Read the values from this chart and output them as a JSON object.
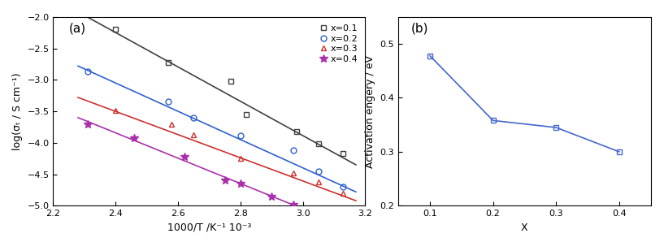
{
  "panel_a": {
    "title": "(a)",
    "xlabel": "1000/T /K⁻¹ 10⁻³",
    "ylabel": "log(σₜ / S cm⁻¹)",
    "xlim": [
      2.2,
      3.2
    ],
    "ylim": [
      -5.0,
      -2.0
    ],
    "xticks": [
      2.2,
      2.4,
      2.6,
      2.8,
      3.0,
      3.2
    ],
    "yticks": [
      -5.0,
      -4.5,
      -4.0,
      -3.5,
      -3.0,
      -2.5,
      -2.0
    ],
    "series": [
      {
        "label": "x=0.1",
        "color": "#404040",
        "marker": "s",
        "markersize": 5,
        "markerfacecolor": "none",
        "markeredgecolor": "#404040",
        "x_data": [
          2.4,
          2.57,
          2.77,
          2.82,
          2.98,
          3.05,
          3.13
        ],
        "y_data": [
          -2.2,
          -2.72,
          -3.02,
          -3.55,
          -3.82,
          -4.02,
          -4.17
        ],
        "fit_x": [
          2.28,
          3.17
        ],
        "fit_y": [
          -1.92,
          -4.35
        ]
      },
      {
        "label": "x=0.2",
        "color": "#3060cc",
        "marker": "o",
        "markersize": 5,
        "markerfacecolor": "none",
        "markeredgecolor": "#3060cc",
        "x_data": [
          2.31,
          2.57,
          2.65,
          2.8,
          2.97,
          3.05,
          3.13
        ],
        "y_data": [
          -2.87,
          -3.35,
          -3.6,
          -3.88,
          -4.12,
          -4.45,
          -4.7
        ],
        "fit_x": [
          2.28,
          3.17
        ],
        "fit_y": [
          -2.78,
          -4.78
        ]
      },
      {
        "label": "x=0.3",
        "color": "#cc3030",
        "marker": "^",
        "markersize": 5,
        "markerfacecolor": "none",
        "markeredgecolor": "#cc3030",
        "x_data": [
          2.4,
          2.58,
          2.65,
          2.8,
          2.97,
          3.05,
          3.13
        ],
        "y_data": [
          -3.48,
          -3.7,
          -3.87,
          -4.25,
          -4.48,
          -4.62,
          -4.8
        ],
        "fit_x": [
          2.28,
          3.17
        ],
        "fit_y": [
          -3.28,
          -4.92
        ]
      },
      {
        "label": "x=0.4",
        "color": "#aa30aa",
        "marker": "*",
        "markersize": 7,
        "markerfacecolor": "#aa30aa",
        "markeredgecolor": "#aa30aa",
        "x_data": [
          2.31,
          2.46,
          2.62,
          2.75,
          2.8,
          2.9,
          2.97
        ],
        "y_data": [
          -3.7,
          -3.93,
          -4.22,
          -4.6,
          -4.65,
          -4.85,
          -4.98
        ],
        "fit_x": [
          2.28,
          3.0
        ],
        "fit_y": [
          -3.6,
          -5.05
        ]
      }
    ]
  },
  "panel_b": {
    "title": "(b)",
    "xlabel": "X",
    "ylabel": "Activation engery / eV",
    "xlim": [
      0.05,
      0.45
    ],
    "ylim": [
      0.2,
      0.55
    ],
    "xticks": [
      0.1,
      0.2,
      0.3,
      0.4
    ],
    "yticks": [
      0.2,
      0.3,
      0.4,
      0.5
    ],
    "x_data": [
      0.1,
      0.2,
      0.3,
      0.4
    ],
    "y_data": [
      0.478,
      0.358,
      0.345,
      0.3
    ],
    "color": "#4466cc",
    "marker": "s",
    "markersize": 5,
    "markerfacecolor": "none"
  }
}
